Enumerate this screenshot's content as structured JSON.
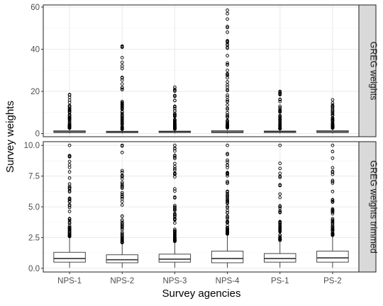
{
  "chart_data": {
    "type": "boxplot",
    "xlabel": "Survey agencies",
    "ylabel": "Survey weights",
    "categories": [
      "NPS-1",
      "NPS-2",
      "NPS-3",
      "NPS-4",
      "PS-1",
      "PS-2"
    ],
    "grid": true,
    "facets": [
      {
        "strip_label": "GREG weights",
        "ylim": [
          -1.5,
          61
        ],
        "yticks": [
          0,
          20,
          40,
          60
        ],
        "boxes": [
          {
            "q1": 0.5,
            "median": 0.8,
            "q3": 1.3,
            "whisker_low": 0.05,
            "whisker_high": 2.6,
            "max_outlier": 18.5
          },
          {
            "q1": 0.45,
            "median": 0.7,
            "q3": 1.1,
            "whisker_low": 0.05,
            "whisker_high": 2.1,
            "max_outlier": 41.5
          },
          {
            "q1": 0.5,
            "median": 0.75,
            "q3": 1.15,
            "whisker_low": 0.05,
            "whisker_high": 2.2,
            "max_outlier": 22
          },
          {
            "q1": 0.45,
            "median": 0.8,
            "q3": 1.4,
            "whisker_low": 0.05,
            "whisker_high": 2.8,
            "max_outlier": 58.5
          },
          {
            "q1": 0.5,
            "median": 0.8,
            "q3": 1.2,
            "whisker_low": 0.05,
            "whisker_high": 2.3,
            "max_outlier": 20
          },
          {
            "q1": 0.5,
            "median": 0.85,
            "q3": 1.4,
            "whisker_low": 0.05,
            "whisker_high": 2.7,
            "max_outlier": 16
          }
        ]
      },
      {
        "strip_label": "GREG weights trimmed",
        "ylim": [
          -0.3,
          10.3
        ],
        "yticks": [
          0.0,
          2.5,
          5.0,
          7.5,
          10.0
        ],
        "ytick_labels": [
          "0.0",
          "2.5",
          "5.0",
          "7.5",
          "10.0"
        ],
        "boxes": [
          {
            "q1": 0.5,
            "median": 0.8,
            "q3": 1.3,
            "whisker_low": 0.05,
            "whisker_high": 2.6,
            "max_outlier": 10
          },
          {
            "q1": 0.45,
            "median": 0.7,
            "q3": 1.1,
            "whisker_low": 0.05,
            "whisker_high": 2.1,
            "max_outlier": 10
          },
          {
            "q1": 0.5,
            "median": 0.75,
            "q3": 1.15,
            "whisker_low": 0.05,
            "whisker_high": 2.2,
            "max_outlier": 10
          },
          {
            "q1": 0.45,
            "median": 0.8,
            "q3": 1.4,
            "whisker_low": 0.05,
            "whisker_high": 2.8,
            "max_outlier": 10
          },
          {
            "q1": 0.5,
            "median": 0.8,
            "q3": 1.2,
            "whisker_low": 0.05,
            "whisker_high": 2.3,
            "max_outlier": 10
          },
          {
            "q1": 0.5,
            "median": 0.85,
            "q3": 1.4,
            "whisker_low": 0.05,
            "whisker_high": 2.7,
            "max_outlier": 10
          }
        ]
      }
    ],
    "colors": {
      "panel_border": "#333333",
      "grid_major": "#ebebeb",
      "grid_minor": "#f5f5f5",
      "strip_fill": "#d9d9d9",
      "box_stroke": "#333333"
    }
  }
}
